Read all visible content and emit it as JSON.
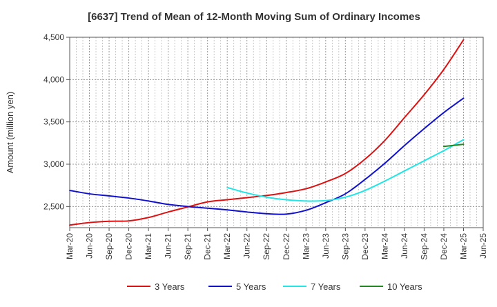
{
  "chart_data": {
    "type": "line",
    "title": "[6637]  Trend of Mean of 12-Month Moving Sum of Ordinary Incomes",
    "xlabel": "",
    "ylabel": "Amount (million yen)",
    "ylim": [
      2250,
      4500
    ],
    "yticks": [
      2500,
      3000,
      3500,
      4000,
      4500
    ],
    "ytick_labels": [
      "2,500",
      "3,000",
      "3,500",
      "4,000",
      "4,500"
    ],
    "x_categories": [
      "Mar-20",
      "Jun-20",
      "Sep-20",
      "Dec-20",
      "Mar-21",
      "Jun-21",
      "Sep-21",
      "Dec-21",
      "Mar-22",
      "Jun-22",
      "Sep-22",
      "Dec-22",
      "Mar-23",
      "Jun-23",
      "Sep-23",
      "Dec-23",
      "Mar-24",
      "Jun-24",
      "Sep-24",
      "Dec-24",
      "Mar-25",
      "Jun-25"
    ],
    "grid": true,
    "legend_position": "bottom",
    "series": [
      {
        "name": "3 Years",
        "color": "#dd1111",
        "values": [
          2280,
          2310,
          2325,
          2330,
          2370,
          2435,
          2495,
          2555,
          2580,
          2605,
          2630,
          2665,
          2710,
          2790,
          2890,
          3060,
          3280,
          3550,
          3820,
          4120,
          4470,
          null
        ]
      },
      {
        "name": "5 Years",
        "color": "#1111cc",
        "values": [
          2690,
          2650,
          2625,
          2600,
          2565,
          2525,
          2500,
          2480,
          2460,
          2435,
          2415,
          2410,
          2455,
          2545,
          2650,
          2820,
          3010,
          3220,
          3420,
          3610,
          3780,
          null
        ]
      },
      {
        "name": "7 Years",
        "color": "#22e5e5",
        "values": [
          null,
          null,
          null,
          null,
          null,
          null,
          null,
          null,
          2725,
          2660,
          2610,
          2580,
          2565,
          2570,
          2610,
          2690,
          2800,
          2920,
          3040,
          3160,
          3290,
          null
        ]
      },
      {
        "name": "10 Years",
        "color": "#228822",
        "values": [
          null,
          null,
          null,
          null,
          null,
          null,
          null,
          null,
          null,
          null,
          null,
          null,
          null,
          null,
          null,
          null,
          null,
          null,
          null,
          3210,
          3235,
          null
        ]
      }
    ]
  }
}
